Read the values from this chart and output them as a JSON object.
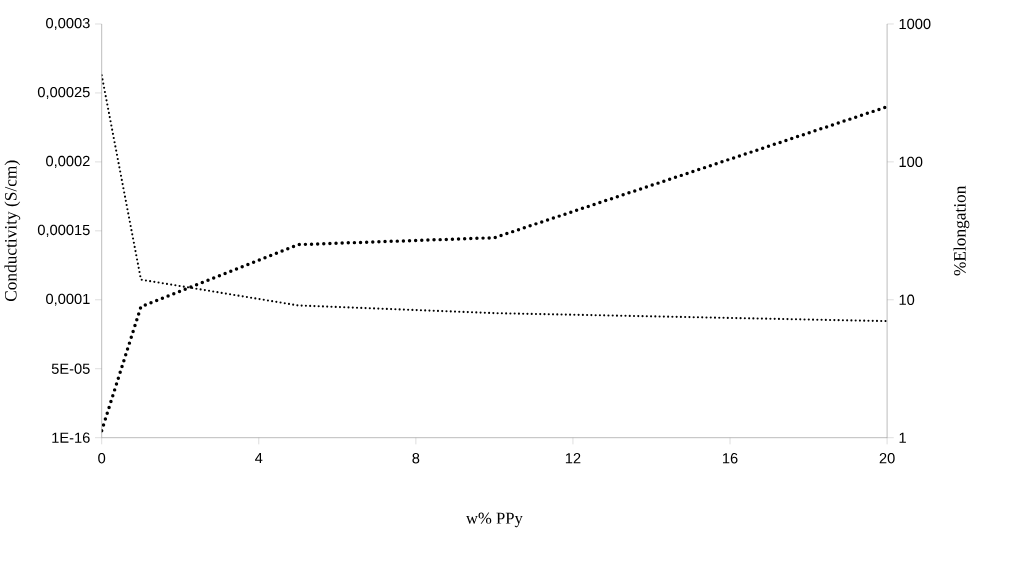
{
  "chart_data": {
    "type": "line",
    "xlabel": "w% PPy",
    "ylabel": "Conductivity (S/cm)",
    "y2label": "%Elongation",
    "x": [
      0,
      1,
      5,
      10,
      20
    ],
    "series": [
      {
        "color": "#000000",
        "values": [
          5e-06,
          9.5e-05,
          0.00014,
          0.000145,
          0.00024
        ]
      },
      {
        "color": "#000000",
        "axis": "y2",
        "values": [
          425,
          14.0,
          9.1,
          8.0,
          7.0
        ]
      }
    ],
    "xlim": [
      0,
      20
    ],
    "xticks": [
      0,
      4,
      8,
      12,
      16,
      20
    ],
    "ylim": [
      0,
      0.0003
    ],
    "yticks": [
      {
        "value": 0,
        "label": "1E-16"
      },
      {
        "value": 5e-05,
        "label": "5E-05"
      },
      {
        "value": 0.0001,
        "label": "0,0001"
      },
      {
        "value": 0.00015,
        "label": "0,00015"
      },
      {
        "value": 0.0002,
        "label": "0,0002"
      },
      {
        "value": 0.00025,
        "label": "0,00025"
      },
      {
        "value": 0.0003,
        "label": "0,0003"
      }
    ],
    "y2lim": [
      1,
      1000
    ],
    "y2ticks": [
      1,
      10,
      100,
      1000
    ],
    "log": "y2",
    "line_style": "dotted"
  }
}
